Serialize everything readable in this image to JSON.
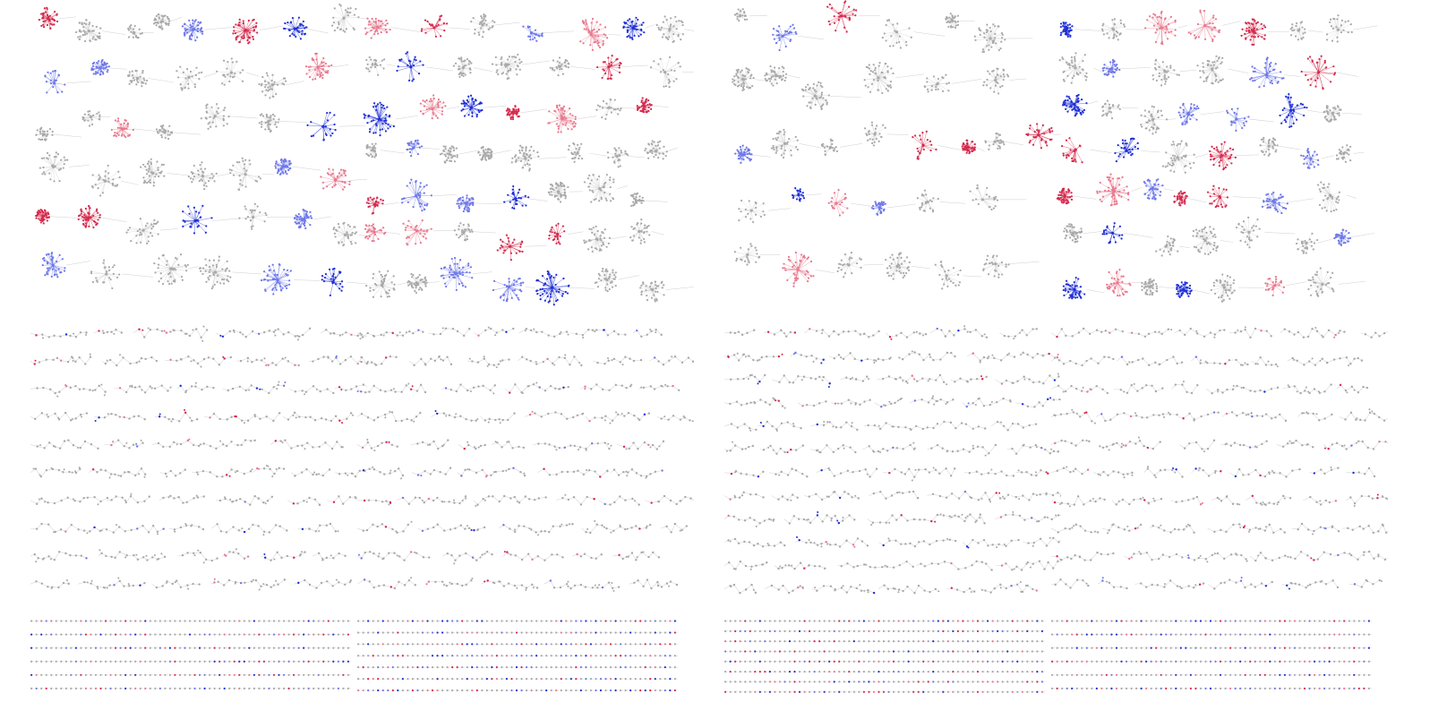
{
  "colors": {
    "background": "#ffffff",
    "neutral_node": "#a9a9a9",
    "neutral_edge": "#cfcfcf",
    "group_a": "#1f2fd6",
    "group_a_light": "#6e78e8",
    "group_b": "#d42a4c",
    "group_b_light": "#e8798e"
  },
  "panels": [
    {
      "seed": 11,
      "cluster_rows": 6,
      "small_rows": 5,
      "grid_rows": 6,
      "color_ratio": 0.4
    },
    {
      "seed": 23,
      "cluster_rows": 7,
      "small_rows": 5,
      "grid_rows": 7,
      "color_ratio": 0.45
    },
    {
      "seed": 37,
      "cluster_rows": 5,
      "small_rows": 6,
      "grid_rows": 8,
      "color_ratio": 0.4
    },
    {
      "seed": 53,
      "cluster_rows": 7,
      "small_rows": 5,
      "grid_rows": 6,
      "color_ratio": 0.42
    }
  ]
}
